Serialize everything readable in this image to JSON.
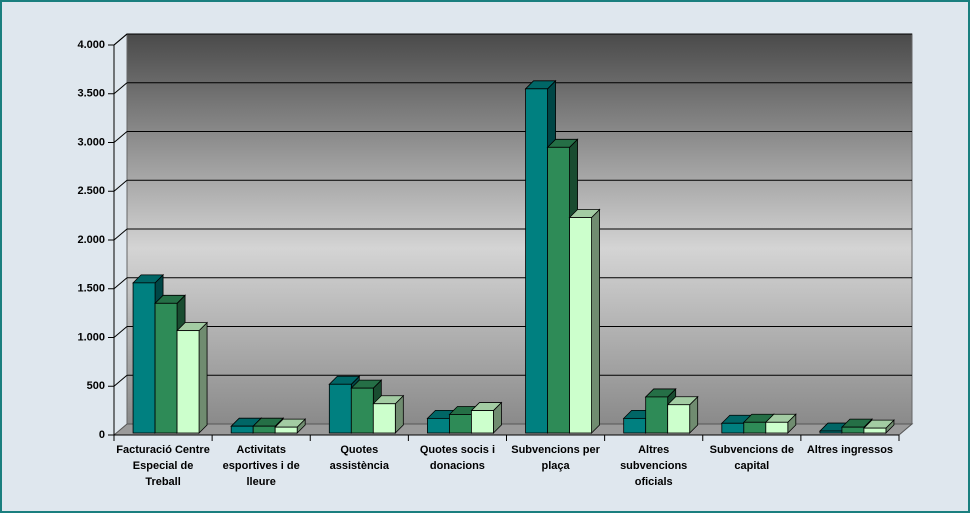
{
  "chart_data": {
    "type": "bar3d",
    "categories": [
      "Facturació Centre Especial de Treball",
      "Activitats esportives i de lleure",
      "Quotes assistència",
      "Quotes socis i donacions",
      "Subvencions per plaça",
      "Altres subvencions oficials",
      "Subvencions de capital",
      "Altres ingressos"
    ],
    "series": [
      {
        "color": "#008080",
        "values": [
          1540,
          70,
          500,
          150,
          3530,
          150,
          100,
          20
        ]
      },
      {
        "color": "#2e8b57",
        "values": [
          1330,
          70,
          460,
          190,
          2930,
          370,
          110,
          60
        ]
      },
      {
        "color": "#ccffcc",
        "values": [
          1050,
          60,
          300,
          230,
          2210,
          290,
          110,
          50
        ]
      }
    ],
    "ylim": [
      0,
      4000
    ],
    "yticks": [
      0,
      500,
      {
        "value": 1000,
        "label": "1.000"
      },
      {
        "value": 1500,
        "label": "1.500"
      },
      {
        "value": 2000,
        "label": "2.000"
      },
      {
        "value": 2500,
        "label": "2.500"
      },
      {
        "value": 3000,
        "label": "3.000"
      },
      {
        "value": 3500,
        "label": "3.500"
      },
      {
        "value": 4000,
        "label": "4.000"
      }
    ],
    "grid": true
  }
}
